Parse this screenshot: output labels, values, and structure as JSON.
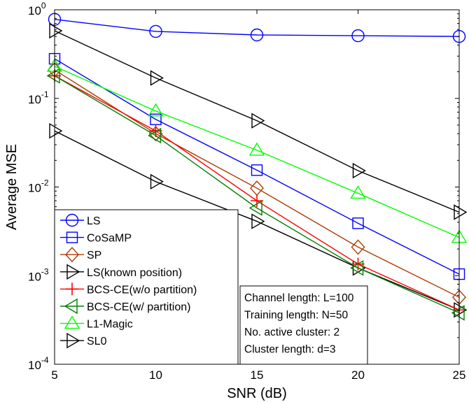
{
  "chart_data": {
    "type": "line",
    "title": "",
    "xlabel": "SNR (dB)",
    "ylabel": "Average MSE",
    "xlim": [
      5,
      25
    ],
    "ylim": [
      0.0001,
      1
    ],
    "yscale": "log",
    "x": [
      5,
      10,
      15,
      20,
      25
    ],
    "x_ticks": [
      "5",
      "10",
      "15",
      "20",
      "25"
    ],
    "y_ticks": [
      {
        "value": 1,
        "base": "10",
        "exp": "0"
      },
      {
        "value": 0.1,
        "base": "10",
        "exp": "-1"
      },
      {
        "value": 0.01,
        "base": "10",
        "exp": "-2"
      },
      {
        "value": 0.001,
        "base": "10",
        "exp": "-3"
      },
      {
        "value": 0.0001,
        "base": "10",
        "exp": "-4"
      }
    ],
    "grid": false,
    "legend_position": "bottom-left",
    "series": [
      {
        "name": "LS",
        "color": "#0000ff",
        "marker": "circle",
        "values": [
          0.78,
          0.57,
          0.52,
          0.51,
          0.5
        ]
      },
      {
        "name": "CoSaMP",
        "color": "#0000ff",
        "marker": "square",
        "values": [
          0.28,
          0.058,
          0.0155,
          0.0039,
          0.00104
        ]
      },
      {
        "name": "SP",
        "color": "#b03a00",
        "marker": "diamond",
        "values": [
          0.21,
          0.04,
          0.0097,
          0.0021,
          0.00057
        ]
      },
      {
        "name": "LS(known position)",
        "color": "#000000",
        "marker": "triangle-right",
        "values": [
          0.043,
          0.0115,
          0.0041,
          0.00122,
          0.00041
        ]
      },
      {
        "name": "BCS-CE(w/o partition)",
        "color": "#ff0000",
        "marker": "plus",
        "values": [
          0.18,
          0.043,
          0.007,
          0.00135,
          0.00041
        ]
      },
      {
        "name": "BCS-CE(w/ partition)",
        "color": "#008000",
        "marker": "triangle-left",
        "values": [
          0.18,
          0.038,
          0.0058,
          0.00122,
          0.00038
        ]
      },
      {
        "name": "L1-Magic",
        "color": "#00ff00",
        "marker": "triangle-up",
        "values": [
          0.23,
          0.072,
          0.026,
          0.0085,
          0.0027
        ]
      },
      {
        "name": "SL0",
        "color": "#000000",
        "marker": "triangle-right",
        "values": [
          0.58,
          0.17,
          0.056,
          0.0153,
          0.0052
        ]
      }
    ],
    "annotation": [
      "Channel length: L=100",
      "Training length: N=50",
      "No. active cluster: 2",
      "Cluster length: d=3"
    ]
  }
}
